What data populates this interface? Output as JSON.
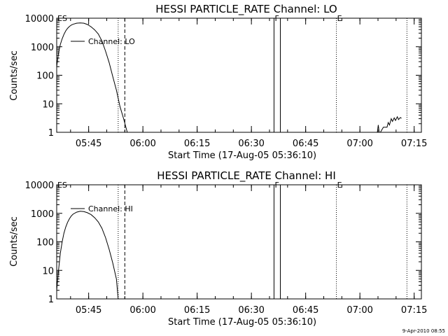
{
  "footer_timestamp": "9-Apr-2010 08:55",
  "colors": {
    "background": "#ffffff",
    "foreground": "#000000"
  },
  "chart_data": [
    {
      "type": "line",
      "title": "HESSI PARTICLE_RATE Channel: LO",
      "xlabel": "Start Time (17-Aug-05 05:36:10)",
      "ylabel": "Counts/sec",
      "yscale": "log",
      "ylim": [
        1,
        10000
      ],
      "xlim": [
        "05:36:10",
        "07:17:00"
      ],
      "grid": false,
      "legend": {
        "label": "Channel: LO",
        "placement": "top-left"
      },
      "x_ticks": [
        "05:45",
        "06:00",
        "06:15",
        "06:30",
        "06:45",
        "07:00",
        "07:15"
      ],
      "y_ticks": [
        "1",
        "10",
        "100",
        "1000",
        "10000"
      ],
      "markers": [
        {
          "label": "ES",
          "time": "05:36:10",
          "style": "dotted"
        },
        {
          "label": "",
          "time": "05:53:10",
          "style": "dotted"
        },
        {
          "label": "",
          "time": "05:55:00",
          "style": "dashed"
        },
        {
          "label": "F",
          "time": "06:36:15",
          "style": "solid"
        },
        {
          "label": "",
          "time": "06:38:00",
          "style": "solid"
        },
        {
          "label": "E",
          "time": "06:53:30",
          "style": "dotted"
        },
        {
          "label": "",
          "time": "07:13:00",
          "style": "dotted"
        }
      ],
      "series": [
        {
          "name": "Channel: LO",
          "segments": [
            [
              [
                "05:36:10",
                200
              ],
              [
                "05:36:40",
                600
              ],
              [
                "05:37:10",
                1200
              ],
              [
                "05:37:40",
                1900
              ],
              [
                "05:38:10",
                2700
              ],
              [
                "05:38:40",
                3600
              ],
              [
                "05:39:10",
                4400
              ],
              [
                "05:39:40",
                5100
              ],
              [
                "05:40:10",
                5700
              ],
              [
                "05:40:40",
                6100
              ],
              [
                "05:41:40",
                6700
              ],
              [
                "05:42:40",
                6800
              ],
              [
                "05:43:40",
                6700
              ],
              [
                "05:44:40",
                6000
              ],
              [
                "05:45:40",
                5000
              ],
              [
                "05:46:40",
                3900
              ],
              [
                "05:47:40",
                2800
              ],
              [
                "05:48:40",
                1600
              ],
              [
                "05:49:40",
                700
              ],
              [
                "05:50:40",
                280
              ],
              [
                "05:51:40",
                90
              ],
              [
                "05:52:40",
                30
              ],
              [
                "05:53:40",
                8
              ],
              [
                "05:54:40",
                3
              ],
              [
                "05:55:40",
                1
              ]
            ],
            [
              [
                "07:04:50",
                1
              ],
              [
                "07:05:05",
                1.8
              ],
              [
                "07:05:20",
                1
              ]
            ],
            [
              [
                "07:05:40",
                1
              ],
              [
                "07:06:30",
                1.5
              ],
              [
                "07:07:30",
                1.5
              ],
              [
                "07:07:50",
                2.2
              ],
              [
                "07:08:10",
                1.8
              ],
              [
                "07:08:40",
                3
              ],
              [
                "07:09:00",
                2.4
              ],
              [
                "07:09:30",
                3.2
              ],
              [
                "07:09:50",
                2.6
              ],
              [
                "07:10:20",
                3.5
              ],
              [
                "07:10:40",
                2.8
              ],
              [
                "07:11:10",
                3.3
              ],
              [
                "07:11:30",
                3.1
              ]
            ]
          ]
        }
      ]
    },
    {
      "type": "line",
      "title": "HESSI PARTICLE_RATE Channel: HI",
      "xlabel": "Start Time (17-Aug-05 05:36:10)",
      "ylabel": "Counts/sec",
      "yscale": "log",
      "ylim": [
        1,
        10000
      ],
      "xlim": [
        "05:36:10",
        "07:17:00"
      ],
      "grid": false,
      "legend": {
        "label": "Channel: HI",
        "placement": "top-left"
      },
      "x_ticks": [
        "05:45",
        "06:00",
        "06:15",
        "06:30",
        "06:45",
        "07:00",
        "07:15"
      ],
      "y_ticks": [
        "1",
        "10",
        "100",
        "1000",
        "10000"
      ],
      "markers": [
        {
          "label": "ES",
          "time": "05:36:10",
          "style": "dotted"
        },
        {
          "label": "",
          "time": "05:53:10",
          "style": "dotted"
        },
        {
          "label": "",
          "time": "05:55:00",
          "style": "dashed"
        },
        {
          "label": "F",
          "time": "06:36:15",
          "style": "solid"
        },
        {
          "label": "",
          "time": "06:38:00",
          "style": "solid"
        },
        {
          "label": "E",
          "time": "06:53:30",
          "style": "dotted"
        },
        {
          "label": "",
          "time": "07:13:00",
          "style": "dotted"
        }
      ],
      "series": [
        {
          "name": "Channel: HI",
          "segments": [
            [
              [
                "05:36:10",
                2
              ],
              [
                "05:36:40",
                10
              ],
              [
                "05:37:10",
                40
              ],
              [
                "05:37:40",
                100
              ],
              [
                "05:38:10",
                200
              ],
              [
                "05:38:40",
                330
              ],
              [
                "05:39:10",
                480
              ],
              [
                "05:39:40",
                640
              ],
              [
                "05:40:10",
                800
              ],
              [
                "05:40:40",
                930
              ],
              [
                "05:41:40",
                1100
              ],
              [
                "05:42:40",
                1180
              ],
              [
                "05:43:40",
                1150
              ],
              [
                "05:44:40",
                1050
              ],
              [
                "05:45:40",
                900
              ],
              [
                "05:46:40",
                700
              ],
              [
                "05:47:40",
                500
              ],
              [
                "05:48:40",
                300
              ],
              [
                "05:49:40",
                140
              ],
              [
                "05:50:40",
                55
              ],
              [
                "05:51:40",
                18
              ],
              [
                "05:52:40",
                5
              ],
              [
                "05:53:10",
                1
              ]
            ]
          ]
        }
      ]
    }
  ]
}
